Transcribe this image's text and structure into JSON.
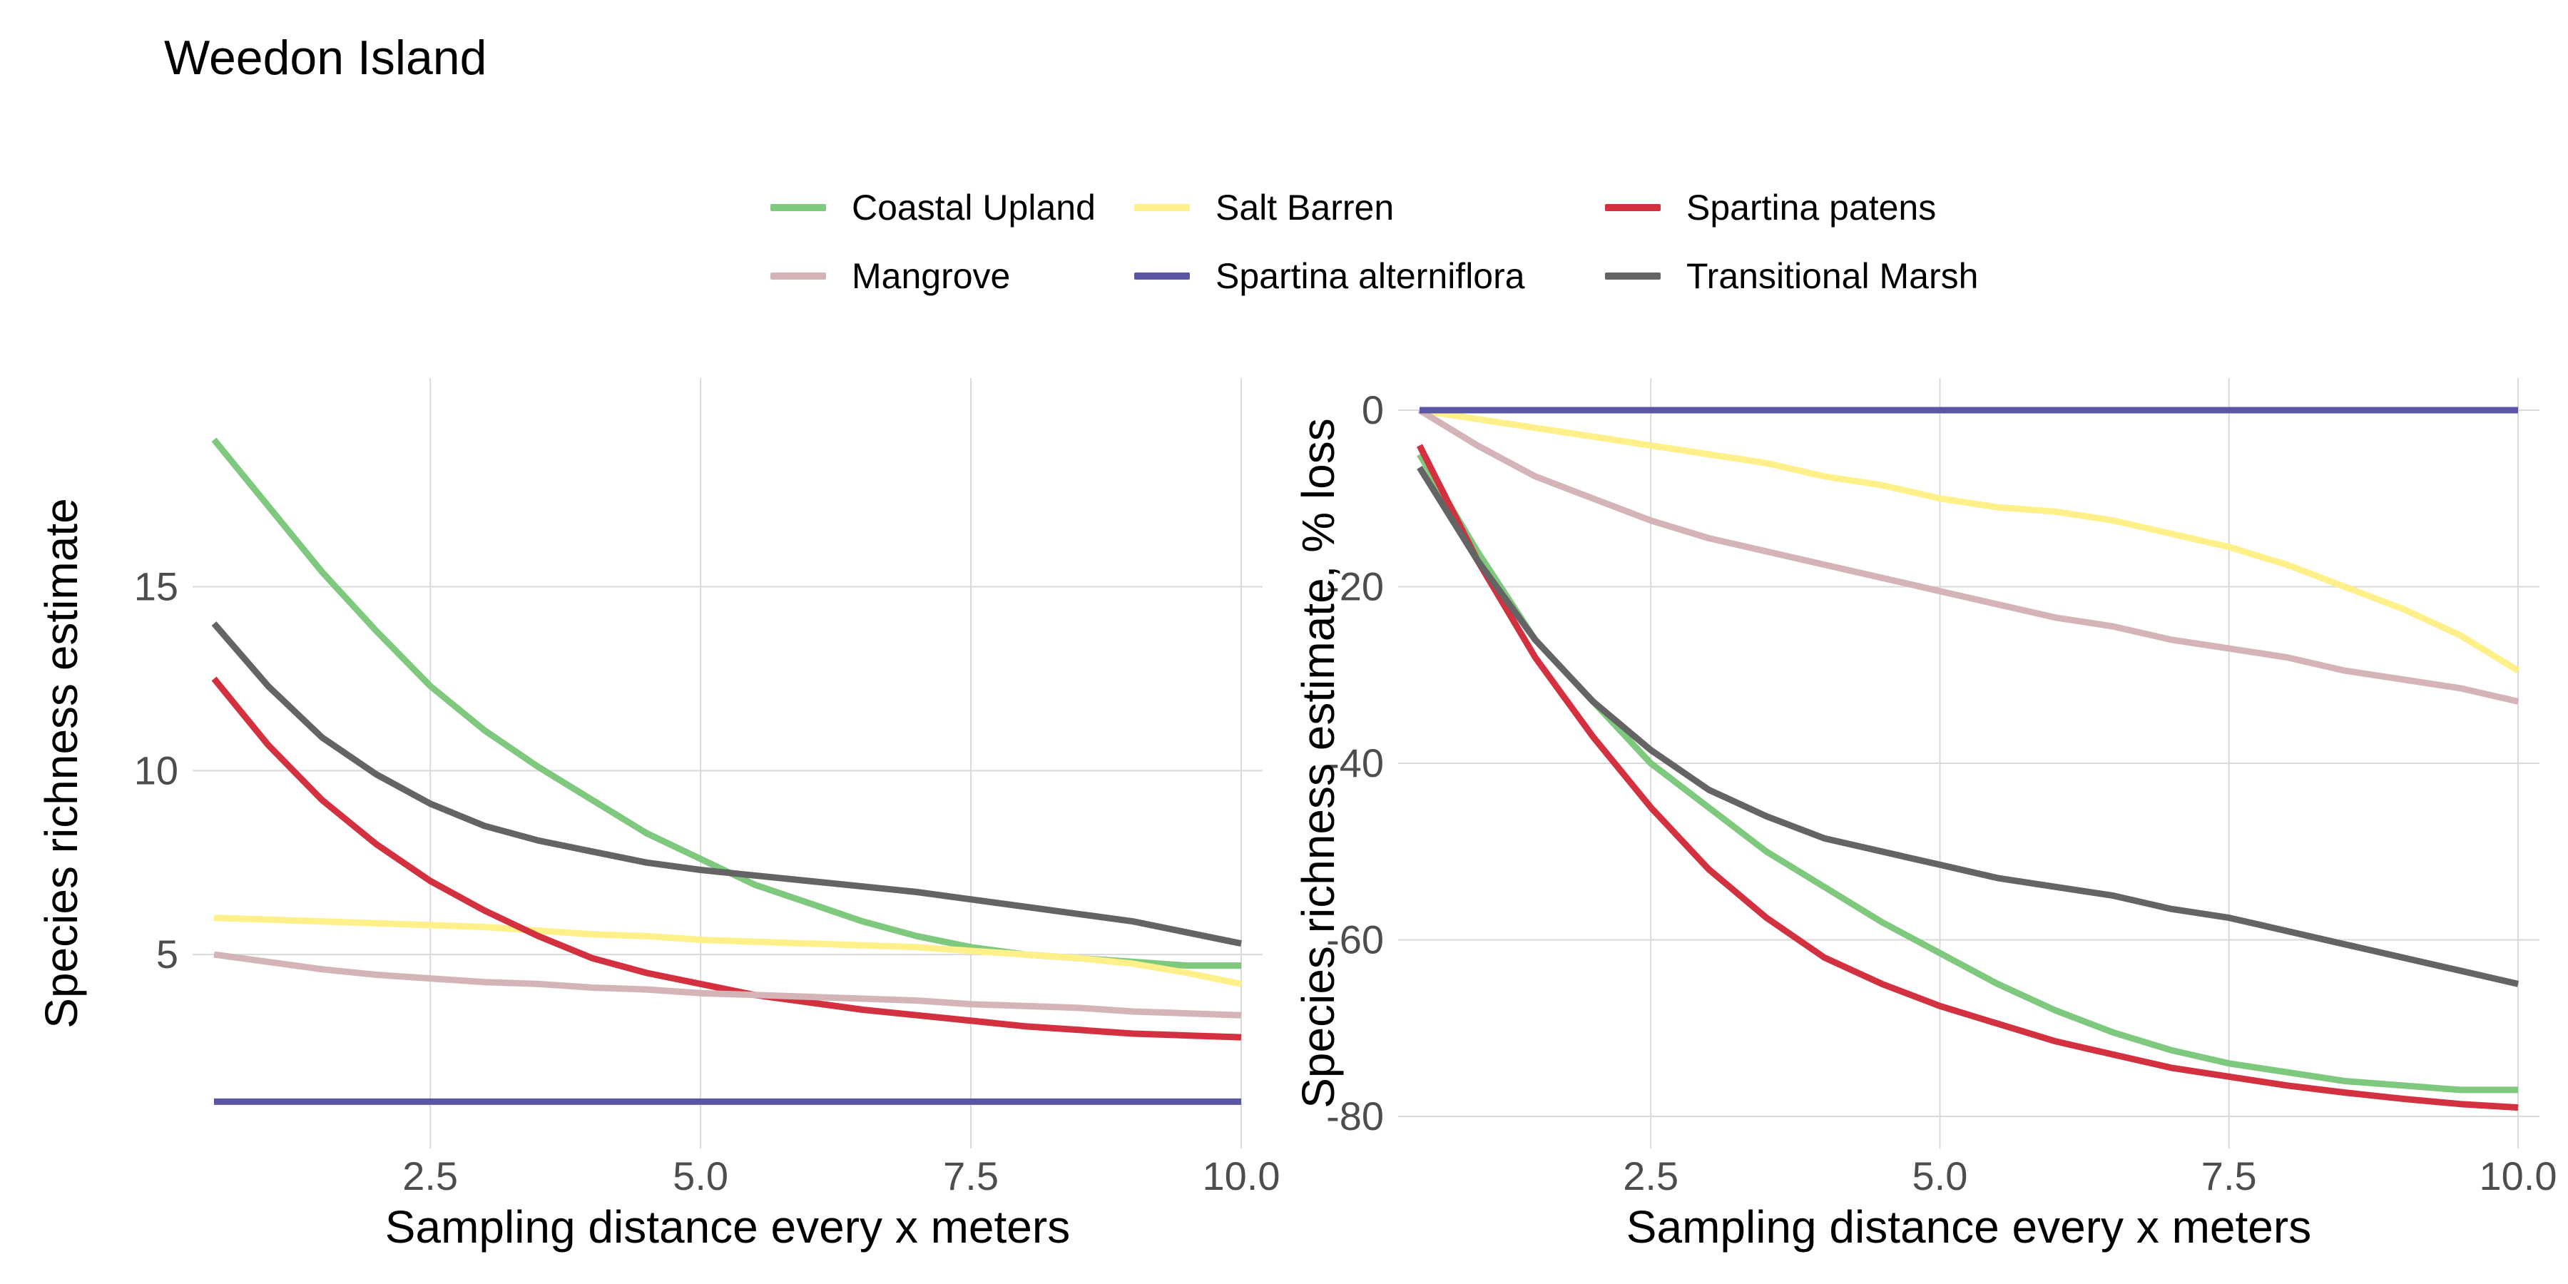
{
  "title": "Weedon Island",
  "legend": [
    {
      "name": "Coastal Upland",
      "color": "#7fc97f"
    },
    {
      "name": "Salt Barren",
      "color": "#fff08a"
    },
    {
      "name": "Spartina patens",
      "color": "#d33040"
    },
    {
      "name": "Mangrove",
      "color": "#d4b4b7"
    },
    {
      "name": "Spartina alterniflora",
      "color": "#5a56a4"
    },
    {
      "name": "Transitional Marsh",
      "color": "#646464"
    }
  ],
  "chart_data": [
    {
      "type": "line",
      "xlabel": "Sampling distance every x meters",
      "ylabel": "Species richness estimate",
      "xlim": [
        0.5,
        10.0
      ],
      "ylim": [
        0.6,
        19.8
      ],
      "xticks": [
        "2.5",
        "5.0",
        "7.5",
        "10.0"
      ],
      "xtick_values": [
        2.5,
        5.0,
        7.5,
        10.0
      ],
      "yticks": [
        "5",
        "10",
        "15"
      ],
      "ytick_values": [
        5,
        10,
        15
      ],
      "grid": true,
      "x": [
        0.5,
        1,
        1.5,
        2,
        2.5,
        3,
        3.5,
        4,
        4.5,
        5,
        5.5,
        6,
        6.5,
        7,
        7.5,
        8,
        8.5,
        9,
        9.5,
        10
      ],
      "series": [
        {
          "name": "Coastal Upland",
          "color": "#7fc97f",
          "values": [
            19.0,
            17.2,
            15.4,
            13.8,
            12.3,
            11.1,
            10.1,
            9.2,
            8.3,
            7.6,
            6.9,
            6.4,
            5.9,
            5.5,
            5.2,
            5.0,
            4.9,
            4.8,
            4.7,
            4.7
          ]
        },
        {
          "name": "Salt Barren",
          "color": "#fff08a",
          "values": [
            6.0,
            5.95,
            5.9,
            5.85,
            5.8,
            5.75,
            5.65,
            5.55,
            5.5,
            5.4,
            5.35,
            5.3,
            5.25,
            5.2,
            5.1,
            5.0,
            4.9,
            4.75,
            4.5,
            4.2
          ]
        },
        {
          "name": "Spartina patens",
          "color": "#d33040",
          "values": [
            12.5,
            10.7,
            9.2,
            8.0,
            7.0,
            6.2,
            5.5,
            4.9,
            4.5,
            4.2,
            3.9,
            3.7,
            3.5,
            3.35,
            3.2,
            3.05,
            2.95,
            2.85,
            2.8,
            2.75
          ]
        },
        {
          "name": "Mangrove",
          "color": "#d4b4b7",
          "values": [
            5.0,
            4.8,
            4.6,
            4.45,
            4.35,
            4.25,
            4.2,
            4.1,
            4.05,
            3.95,
            3.9,
            3.85,
            3.8,
            3.75,
            3.65,
            3.6,
            3.55,
            3.45,
            3.4,
            3.35
          ]
        },
        {
          "name": "Spartina alterniflora",
          "color": "#5a56a4",
          "values": [
            1.0,
            1.0,
            1.0,
            1.0,
            1.0,
            1.0,
            1.0,
            1.0,
            1.0,
            1.0,
            1.0,
            1.0,
            1.0,
            1.0,
            1.0,
            1.0,
            1.0,
            1.0,
            1.0,
            1.0
          ]
        },
        {
          "name": "Transitional Marsh",
          "color": "#646464",
          "values": [
            14.0,
            12.3,
            10.9,
            9.9,
            9.1,
            8.5,
            8.1,
            7.8,
            7.5,
            7.3,
            7.15,
            7.0,
            6.85,
            6.7,
            6.5,
            6.3,
            6.1,
            5.9,
            5.6,
            5.3
          ]
        }
      ]
    },
    {
      "type": "line",
      "xlabel": "Sampling distance every x meters",
      "ylabel": "Species richness estimate, % loss",
      "xlim": [
        0.5,
        10.0
      ],
      "ylim": [
        -80.0,
        0.0
      ],
      "xticks": [
        "2.5",
        "5.0",
        "7.5",
        "10.0"
      ],
      "xtick_values": [
        2.5,
        5.0,
        7.5,
        10.0
      ],
      "yticks": [
        "0",
        "-20",
        "-40",
        "-60",
        "-80"
      ],
      "ytick_values": [
        0,
        -20,
        -40,
        -60,
        -80
      ],
      "grid": true,
      "x": [
        0.5,
        1,
        1.5,
        2,
        2.5,
        3,
        3.5,
        4,
        4.5,
        5,
        5.5,
        6,
        6.5,
        7,
        7.5,
        8,
        8.5,
        9,
        9.5,
        10
      ],
      "series": [
        {
          "name": "Coastal Upland",
          "color": "#7fc97f",
          "values": [
            -5.0,
            -16.0,
            -26.0,
            -33.0,
            -40.0,
            -45.0,
            -50.0,
            -54.0,
            -58.0,
            -61.5,
            -65.0,
            -68.0,
            -70.5,
            -72.5,
            -74.0,
            -75.0,
            -76.0,
            -76.5,
            -77.0,
            -77.0
          ]
        },
        {
          "name": "Salt Barren",
          "color": "#fff08a",
          "values": [
            0.0,
            -1.0,
            -2.0,
            -3.0,
            -4.0,
            -5.0,
            -6.0,
            -7.5,
            -8.5,
            -10.0,
            -11.0,
            -11.5,
            -12.5,
            -14.0,
            -15.5,
            -17.5,
            -20.0,
            -22.5,
            -25.5,
            -29.5
          ]
        },
        {
          "name": "Spartina patens",
          "color": "#d33040",
          "values": [
            -4.0,
            -17.0,
            -28.0,
            -37.0,
            -45.0,
            -52.0,
            -57.5,
            -62.0,
            -65.0,
            -67.5,
            -69.5,
            -71.5,
            -73.0,
            -74.5,
            -75.5,
            -76.5,
            -77.3,
            -78.0,
            -78.6,
            -79.0
          ]
        },
        {
          "name": "Mangrove",
          "color": "#d4b4b7",
          "values": [
            0.0,
            -4.0,
            -7.5,
            -10.0,
            -12.5,
            -14.5,
            -16.0,
            -17.5,
            -19.0,
            -20.5,
            -22.0,
            -23.5,
            -24.5,
            -26.0,
            -27.0,
            -28.0,
            -29.5,
            -30.5,
            -31.5,
            -33.0
          ]
        },
        {
          "name": "Spartina alterniflora",
          "color": "#5a56a4",
          "values": [
            0.0,
            0.0,
            0.0,
            0.0,
            0.0,
            0.0,
            0.0,
            0.0,
            0.0,
            0.0,
            0.0,
            0.0,
            0.0,
            0.0,
            0.0,
            0.0,
            0.0,
            0.0,
            0.0,
            0.0
          ]
        },
        {
          "name": "Transitional Marsh",
          "color": "#646464",
          "values": [
            -6.5,
            -17.0,
            -26.0,
            -33.0,
            -38.5,
            -43.0,
            -46.0,
            -48.5,
            -50.0,
            -51.5,
            -53.0,
            -54.0,
            -55.0,
            -56.5,
            -57.5,
            -59.0,
            -60.5,
            -62.0,
            -63.5,
            -65.0
          ]
        }
      ]
    }
  ]
}
